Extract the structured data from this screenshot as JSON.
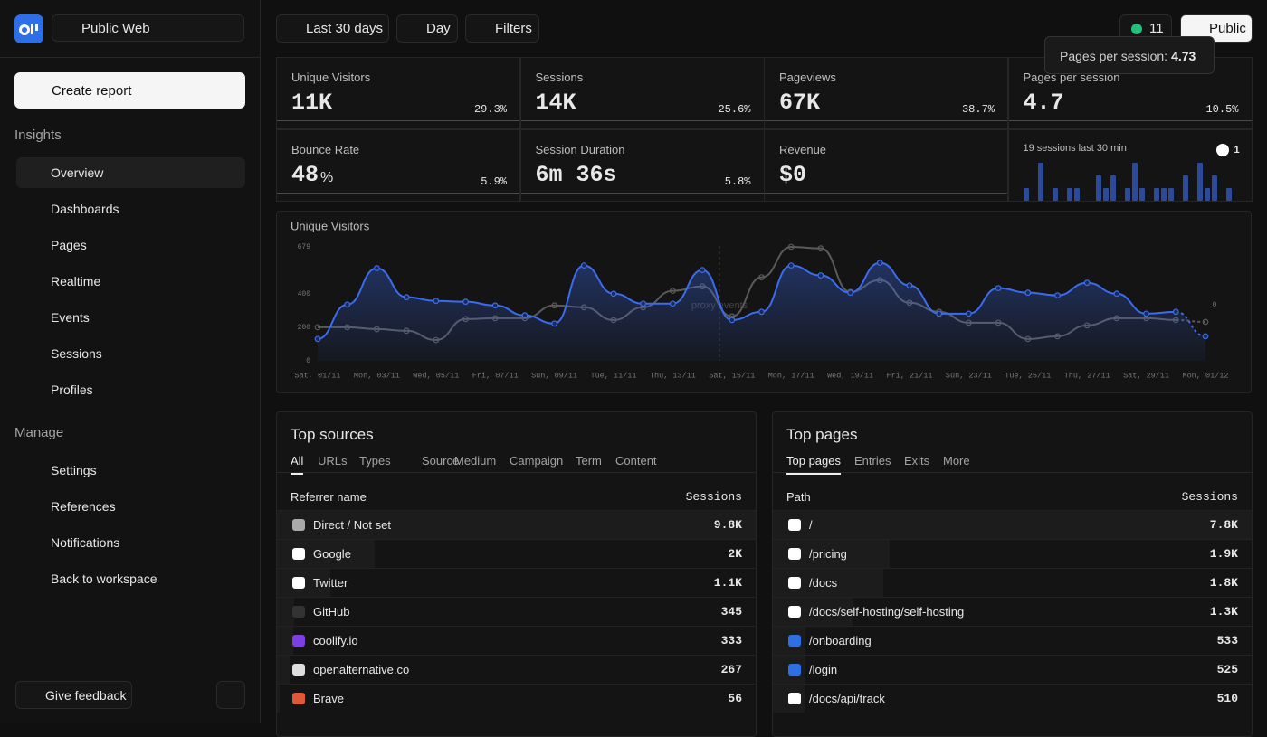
{
  "sidebar": {
    "project": "Public Web",
    "create_report": "Create report",
    "sections": [
      {
        "title": "Insights",
        "items": [
          "Overview",
          "Dashboards",
          "Pages",
          "Realtime",
          "Events",
          "Sessions",
          "Profiles"
        ]
      },
      {
        "title": "Manage",
        "items": [
          "Settings",
          "References",
          "Notifications",
          "Back to workspace"
        ]
      }
    ],
    "feedback": "Give feedback"
  },
  "toolbar": {
    "range": "Last 30 days",
    "interval": "Day",
    "filters": "Filters",
    "live_count": "11",
    "visibility": "Public"
  },
  "tooltip": {
    "label": "Pages per session:",
    "value": "4.73"
  },
  "metrics": [
    {
      "label": "Unique Visitors",
      "value": "11K",
      "change": "29.3%"
    },
    {
      "label": "Sessions",
      "value": "14K",
      "change": "25.6%"
    },
    {
      "label": "Pageviews",
      "value": "67K",
      "change": "38.7%"
    },
    {
      "label": "Pages per session",
      "value": "4.7",
      "change": "10.5%"
    },
    {
      "label": "Bounce Rate",
      "value": "48",
      "unit": "%",
      "change": "5.9%"
    },
    {
      "label": "Session Duration",
      "value": "6m 36s",
      "change": "5.8%"
    },
    {
      "label": "Revenue",
      "value": "$0"
    }
  ],
  "realtime": {
    "label": "19 sessions last 30 min",
    "referrer_count": "1",
    "bars": [
      1,
      0,
      3,
      0,
      1,
      0,
      1,
      1,
      0,
      0,
      2,
      1,
      2,
      0,
      1,
      3,
      1,
      0,
      1,
      1,
      1,
      0,
      2,
      0,
      3,
      1,
      2,
      0,
      1,
      0
    ]
  },
  "chart_data": {
    "type": "line",
    "title": "Unique Visitors",
    "categories": [
      "Sat, 01/11",
      null,
      "Mon, 03/11",
      null,
      "Wed, 05/11",
      null,
      "Fri, 07/11",
      null,
      "Sun, 09/11",
      null,
      "Tue, 11/11",
      null,
      "Thu, 13/11",
      null,
      "Sat, 15/11",
      null,
      "Mon, 17/11",
      null,
      "Wed, 19/11",
      null,
      "Fri, 21/11",
      null,
      "Sun, 23/11",
      null,
      "Tue, 25/11",
      null,
      "Thu, 27/11",
      null,
      "Sat, 29/11",
      null,
      "Mon, 01/12"
    ],
    "series": [
      {
        "color": "#3b6cf0",
        "values": [
          130,
          335,
          552,
          379,
          357,
          352,
          330,
          271,
          222,
          568,
          400,
          341,
          341,
          541,
          243,
          292,
          568,
          509,
          406,
          584,
          449,
          281,
          281,
          433,
          406,
          390,
          465,
          400,
          281,
          292,
          146
        ]
      },
      {
        "color": "#5a5a5a",
        "values": [
          200,
          200,
          189,
          179,
          124,
          249,
          254,
          254,
          330,
          319,
          243,
          319,
          417,
          444,
          265,
          498,
          679,
          670,
          411,
          481,
          346,
          292,
          227,
          227,
          130,
          146,
          211,
          254,
          254,
          243,
          232
        ]
      }
    ],
    "ylim": [
      0,
      679
    ],
    "yticks": [
      0,
      200,
      400,
      679
    ],
    "annotation": "proxy events",
    "right_label": "0"
  },
  "sources": {
    "title": "Top sources",
    "tabs": [
      "All",
      "URLs",
      "Types",
      "Source",
      "Medium",
      "Campaign",
      "Term",
      "Content"
    ],
    "columns": [
      "Referrer name",
      "Sessions"
    ],
    "rows": [
      {
        "name": "Direct / Not set",
        "sessions": 9800,
        "sessions_label": "9.8K"
      },
      {
        "name": "Google",
        "sessions": 2000,
        "sessions_label": "2K"
      },
      {
        "name": "Twitter",
        "sessions": 1100,
        "sessions_label": "1.1K"
      },
      {
        "name": "GitHub",
        "sessions": 345
      },
      {
        "name": "coolify.io",
        "sessions": 333
      },
      {
        "name": "openalternative.co",
        "sessions": 267
      },
      {
        "name": "Brave",
        "sessions": 56
      }
    ]
  },
  "pages": {
    "title": "Top pages",
    "tabs": [
      "Top pages",
      "Entries",
      "Exits",
      "More"
    ],
    "columns": [
      "Path",
      "Sessions"
    ],
    "rows": [
      {
        "name": "/",
        "sessions": 7800,
        "sessions_label": "7.8K"
      },
      {
        "name": "/pricing",
        "sessions": 1900,
        "sessions_label": "1.9K"
      },
      {
        "name": "/docs",
        "sessions": 1800,
        "sessions_label": "1.8K"
      },
      {
        "name": "/docs/self-hosting/self-hosting",
        "sessions": 1300,
        "sessions_label": "1.3K"
      },
      {
        "name": "/onboarding",
        "sessions": 533
      },
      {
        "name": "/login",
        "sessions": 525
      },
      {
        "name": "/docs/api/track",
        "sessions": 510
      }
    ]
  }
}
